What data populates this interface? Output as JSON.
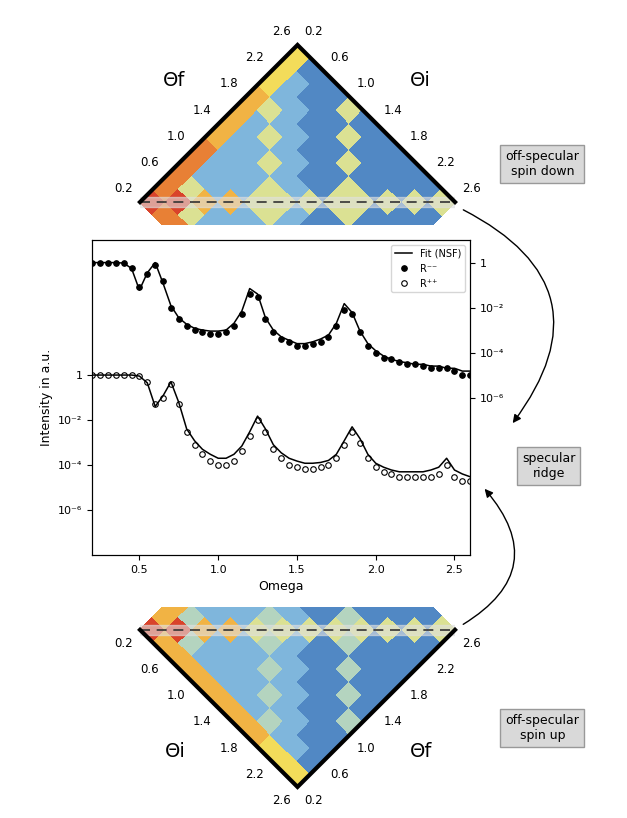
{
  "chart_data": [
    {
      "type": "heatmap",
      "x_label": "Θi",
      "y_label": "Θf",
      "xlim": [
        0.2,
        2.6
      ],
      "ylim": [
        0.2,
        2.6
      ],
      "xticks": [
        0.2,
        0.6,
        1.0,
        1.4,
        1.8,
        2.2,
        2.6
      ],
      "yticks": [
        0.2,
        0.6,
        1.0,
        1.4,
        1.8,
        2.2,
        2.6
      ],
      "x_edges": [
        0.2,
        0.4,
        0.6,
        0.8,
        1.0,
        1.2,
        1.4,
        1.6,
        1.8,
        2.0,
        2.2,
        2.4,
        2.6
      ],
      "y_edges": [
        0.2,
        0.4,
        0.6,
        0.8,
        1.0,
        1.2,
        1.4,
        1.6,
        1.8,
        2.0,
        2.2,
        2.4,
        2.6
      ],
      "color_range": [
        0,
        9
      ],
      "cells": [
        [
          9,
          8,
          8,
          8,
          8,
          7,
          7,
          7,
          7,
          6,
          6,
          6
        ],
        [
          8,
          9,
          5,
          3,
          3,
          3,
          3,
          3,
          5,
          3,
          3,
          2
        ],
        [
          8,
          5,
          7,
          3,
          3,
          3,
          3,
          5,
          3,
          3,
          2,
          2
        ],
        [
          8,
          3,
          3,
          7,
          3,
          3,
          5,
          3,
          3,
          2,
          2,
          2
        ],
        [
          8,
          3,
          3,
          3,
          5,
          5,
          3,
          3,
          2,
          2,
          2,
          5
        ],
        [
          7,
          3,
          3,
          3,
          5,
          5,
          3,
          2,
          2,
          2,
          5,
          2
        ],
        [
          7,
          3,
          3,
          5,
          3,
          3,
          5,
          2,
          2,
          5,
          2,
          2
        ],
        [
          7,
          3,
          5,
          3,
          3,
          2,
          2,
          5,
          5,
          2,
          2,
          2
        ],
        [
          7,
          5,
          3,
          3,
          2,
          2,
          2,
          5,
          5,
          2,
          2,
          2
        ],
        [
          6,
          3,
          3,
          2,
          2,
          2,
          5,
          2,
          2,
          5,
          2,
          2
        ],
        [
          6,
          3,
          2,
          2,
          2,
          5,
          2,
          2,
          2,
          2,
          5,
          2
        ],
        [
          6,
          2,
          2,
          2,
          5,
          2,
          2,
          2,
          2,
          2,
          2,
          5
        ]
      ],
      "annotations": [
        "off-specular\nspin down"
      ]
    },
    {
      "type": "line",
      "xlabel": "Omega",
      "ylabel": "Intensity in a.u.",
      "log": "y",
      "grid": false,
      "legend": "upper right",
      "xlim": [
        0.2,
        2.6
      ],
      "xticks": [
        0.5,
        1.0,
        1.5,
        2.0,
        2.5
      ],
      "ylim": [
        1e-08,
        1000000.0
      ],
      "yticks": [
        1,
        {
          "value": 0.01,
          "label": "10⁻²"
        },
        {
          "value": 0.0001,
          "label": "10⁻⁴"
        },
        {
          "value": 1e-06,
          "label": "10⁻⁶"
        }
      ],
      "y2lim": [
        1e-13,
        10
      ],
      "y2ticks": [
        1,
        {
          "value": 0.01,
          "label": "10⁻²"
        },
        {
          "value": 0.0001,
          "label": "10⁻⁴"
        },
        {
          "value": 1e-06,
          "label": "10⁻⁶"
        }
      ],
      "x": [
        0.2,
        0.25,
        0.3,
        0.35,
        0.4,
        0.45,
        0.5,
        0.55,
        0.6,
        0.65,
        0.7,
        0.75,
        0.8,
        0.85,
        0.9,
        0.95,
        1.0,
        1.05,
        1.1,
        1.15,
        1.2,
        1.25,
        1.3,
        1.35,
        1.4,
        1.45,
        1.5,
        1.55,
        1.6,
        1.65,
        1.7,
        1.75,
        1.8,
        1.85,
        1.9,
        1.95,
        2.0,
        2.05,
        2.1,
        2.15,
        2.2,
        2.25,
        2.3,
        2.35,
        2.4,
        2.45,
        2.5,
        2.55,
        2.6
      ],
      "series": [
        {
          "name": "Fit (NSF)",
          "type": "line",
          "color": "#000000",
          "line_style": "solid",
          "axis": "y2",
          "values": [
            1,
            1,
            1,
            1,
            0.95,
            0.55,
            0.06,
            0.35,
            1.0,
            0.12,
            0.012,
            0.0035,
            0.0018,
            0.0012,
            0.001,
            0.0009,
            0.0009,
            0.001,
            0.002,
            0.007,
            0.07,
            0.04,
            0.0035,
            0.001,
            0.0005,
            0.00035,
            0.00025,
            0.00025,
            0.0003,
            0.0004,
            0.0006,
            0.002,
            0.015,
            0.006,
            0.0009,
            0.00025,
            0.00012,
            7e-05,
            5e-05,
            4e-05,
            3.5e-05,
            3e-05,
            3e-05,
            2.5e-05,
            2.5e-05,
            2e-05,
            2e-05,
            1.5e-05,
            1.5e-05
          ]
        },
        {
          "name": "R⁻⁻",
          "type": "scatter",
          "color": "#000000",
          "marker": "filled_circle",
          "axis": "y2",
          "values": [
            1,
            1,
            1,
            1,
            0.95,
            0.6,
            0.08,
            0.3,
            0.8,
            0.15,
            0.01,
            0.003,
            0.0015,
            0.001,
            0.0008,
            0.0007,
            0.0007,
            0.0008,
            0.0015,
            0.005,
            0.04,
            0.03,
            0.003,
            0.0008,
            0.0004,
            0.0003,
            0.0002,
            0.0002,
            0.00025,
            0.0003,
            0.0005,
            0.0015,
            0.008,
            0.005,
            0.0008,
            0.0002,
            0.0001,
            6e-05,
            5e-05,
            4e-05,
            3e-05,
            3e-05,
            2.5e-05,
            2e-05,
            2e-05,
            2e-05,
            1.5e-05,
            1e-05,
            1e-05
          ]
        },
        {
          "name": "Fit (NSF)",
          "type": "line",
          "color": "#000000",
          "line_style": "solid",
          "values": [
            1,
            1,
            1,
            1,
            1,
            1,
            0.9,
            0.45,
            0.04,
            0.12,
            0.5,
            0.06,
            0.004,
            0.0012,
            0.0005,
            0.0003,
            0.0002,
            0.0002,
            0.0003,
            0.0007,
            0.003,
            0.015,
            0.004,
            0.0008,
            0.00035,
            0.0002,
            0.00015,
            0.00012,
            0.00012,
            0.00013,
            0.00016,
            0.0003,
            0.0012,
            0.005,
            0.0015,
            0.0003,
            0.00012,
            8e-05,
            6e-05,
            5e-05,
            5e-05,
            5e-05,
            5e-05,
            6e-05,
            8e-05,
            0.0002,
            6e-05,
            4e-05,
            3e-05
          ]
        },
        {
          "name": "R⁺⁺",
          "type": "scatter",
          "color": "#000000",
          "marker": "open_circle",
          "values": [
            1,
            1,
            1,
            1,
            1,
            1,
            0.9,
            0.5,
            0.05,
            0.1,
            0.4,
            0.05,
            0.003,
            0.0008,
            0.0003,
            0.00015,
            0.0001,
            0.0001,
            0.00015,
            0.0004,
            0.002,
            0.01,
            0.003,
            0.0005,
            0.0002,
            0.0001,
            8e-05,
            7e-05,
            7e-05,
            8e-05,
            0.0001,
            0.0002,
            0.0008,
            0.003,
            0.001,
            0.0002,
            8e-05,
            5e-05,
            4e-05,
            3e-05,
            3e-05,
            3e-05,
            3e-05,
            3e-05,
            4e-05,
            0.0001,
            3e-05,
            2e-05,
            2e-05
          ]
        }
      ],
      "annotations": [
        "specular\nridge"
      ]
    },
    {
      "type": "heatmap",
      "x_label": "Θi",
      "y_label": "Θf",
      "xlim": [
        0.2,
        2.6
      ],
      "ylim": [
        0.2,
        2.6
      ],
      "xticks": [
        0.2,
        0.6,
        1.0,
        1.4,
        1.8,
        2.2,
        2.6
      ],
      "yticks": [
        0.2,
        0.6,
        1.0,
        1.4,
        1.8,
        2.2,
        2.6
      ],
      "x_edges": [
        0.2,
        0.4,
        0.6,
        0.8,
        1.0,
        1.2,
        1.4,
        1.6,
        1.8,
        2.0,
        2.2,
        2.4,
        2.6
      ],
      "y_edges": [
        0.2,
        0.4,
        0.6,
        0.8,
        1.0,
        1.2,
        1.4,
        1.6,
        1.8,
        2.0,
        2.2,
        2.4,
        2.6
      ],
      "color_range": [
        0,
        9
      ],
      "cells": [
        [
          9,
          7,
          7,
          7,
          7,
          7,
          7,
          7,
          7,
          6,
          6,
          6
        ],
        [
          7,
          9,
          4,
          3,
          3,
          3,
          3,
          3,
          4,
          3,
          3,
          2
        ],
        [
          7,
          4,
          7,
          3,
          3,
          3,
          3,
          4,
          3,
          3,
          2,
          2
        ],
        [
          7,
          3,
          3,
          7,
          3,
          3,
          4,
          3,
          3,
          2,
          2,
          2
        ],
        [
          7,
          3,
          3,
          3,
          5,
          4,
          3,
          3,
          2,
          2,
          2,
          4
        ],
        [
          7,
          3,
          3,
          3,
          4,
          5,
          3,
          2,
          2,
          2,
          4,
          2
        ],
        [
          7,
          3,
          3,
          4,
          3,
          3,
          5,
          2,
          2,
          4,
          2,
          2
        ],
        [
          7,
          3,
          4,
          3,
          3,
          2,
          2,
          5,
          4,
          2,
          2,
          2
        ],
        [
          7,
          4,
          3,
          3,
          2,
          2,
          2,
          4,
          5,
          2,
          2,
          2
        ],
        [
          6,
          3,
          3,
          2,
          2,
          2,
          4,
          2,
          2,
          5,
          2,
          2
        ],
        [
          6,
          3,
          2,
          2,
          2,
          4,
          2,
          2,
          2,
          2,
          5,
          2
        ],
        [
          6,
          2,
          2,
          2,
          4,
          2,
          2,
          2,
          2,
          2,
          2,
          5
        ]
      ],
      "annotations": [
        "off-specular\nspin up"
      ]
    }
  ]
}
